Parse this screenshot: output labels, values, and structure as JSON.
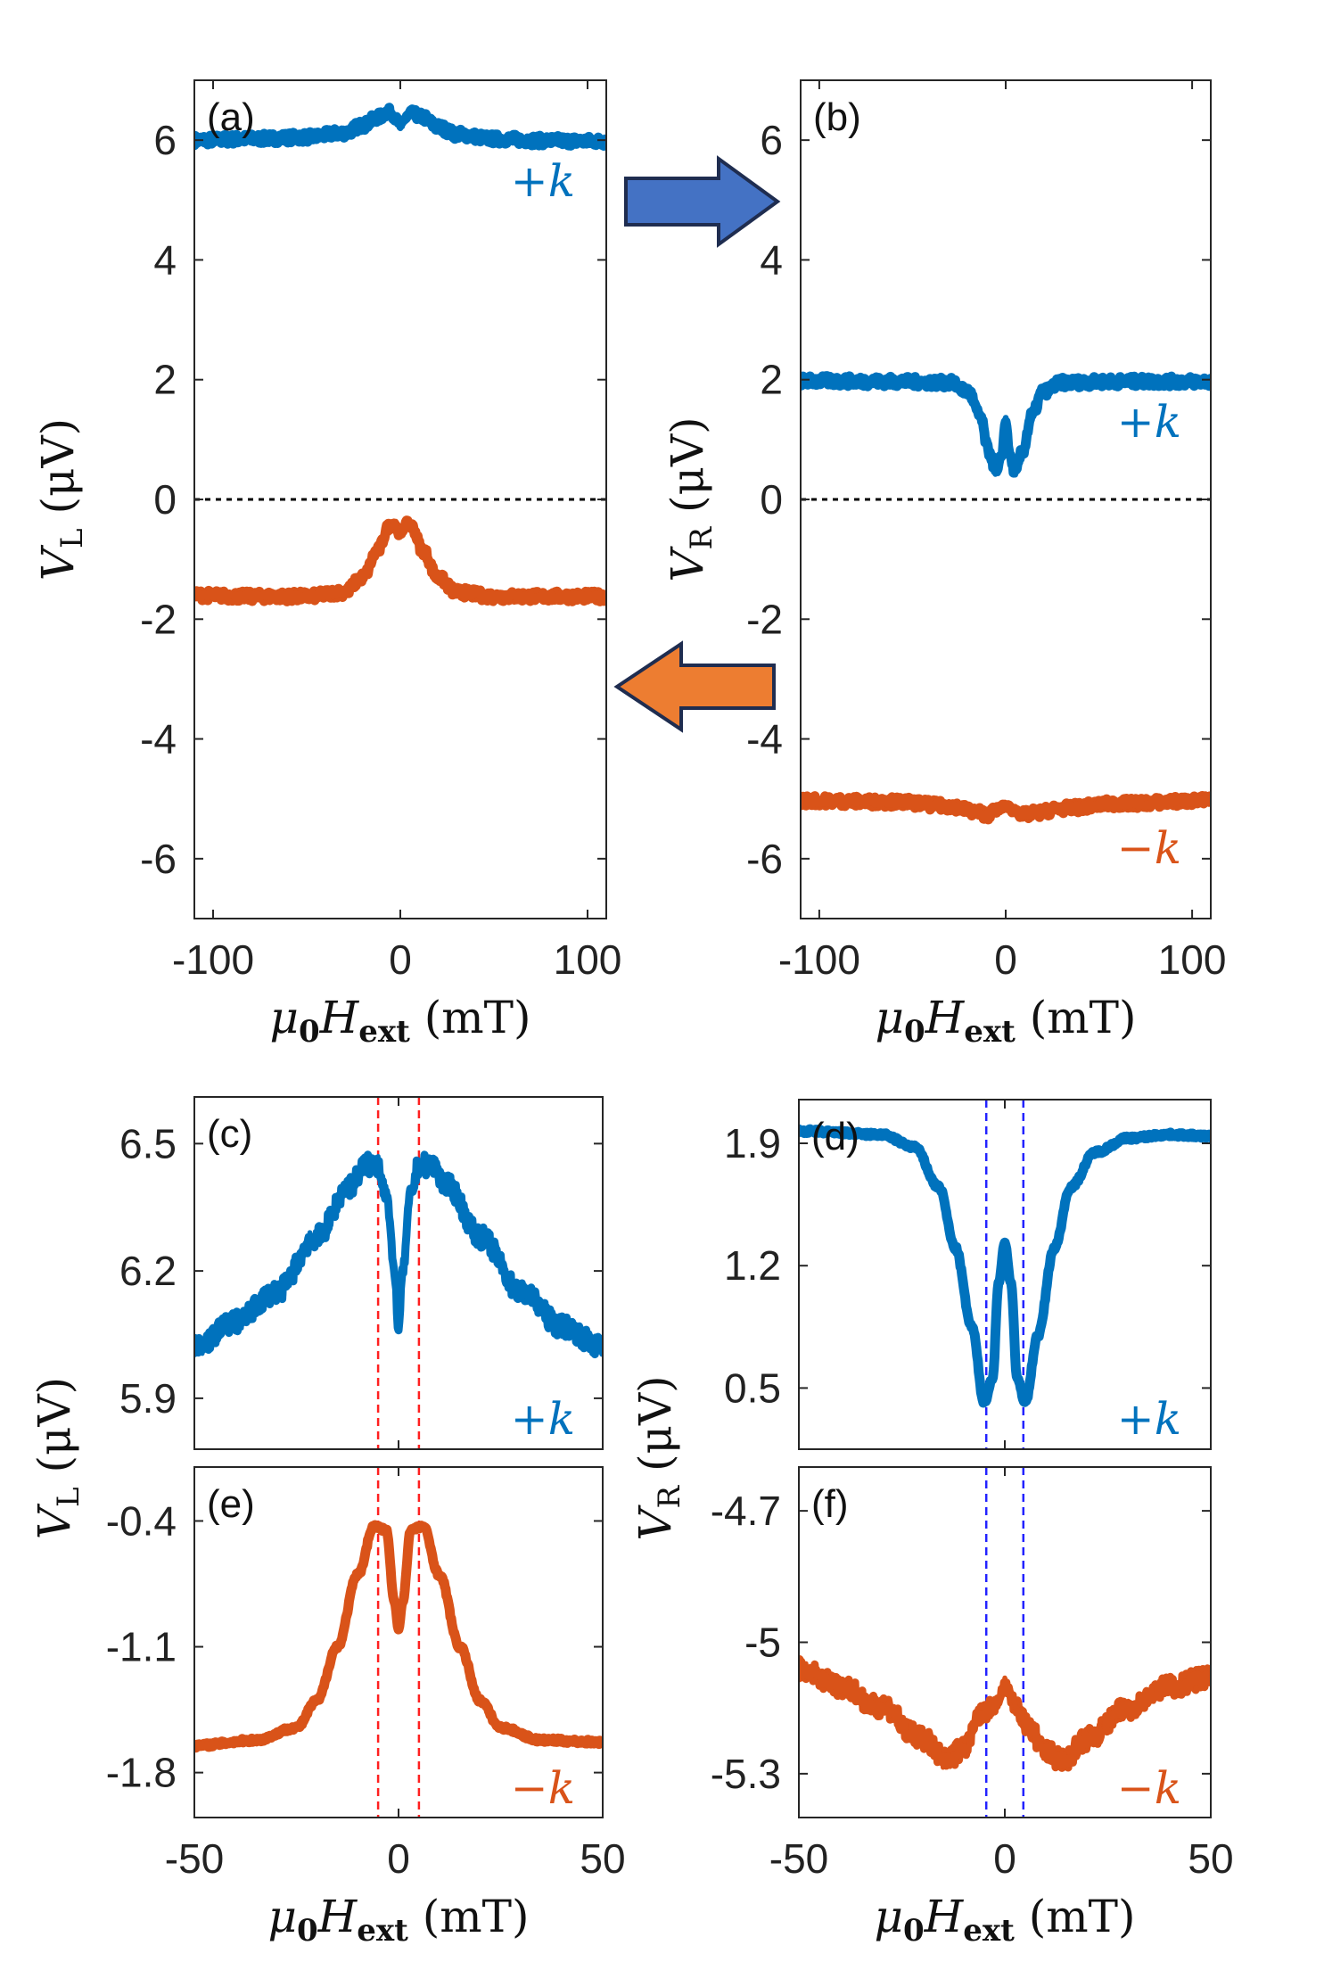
{
  "colors": {
    "blue": "#0072BD",
    "orange": "#D95319",
    "arrow_blue": "#4472C4",
    "arrow_orange": "#ED7D31",
    "arrow_edge": "#1F2D50",
    "red_dash": "#FF2020",
    "blue_dash": "#2222FF"
  },
  "chart_data": [
    {
      "id": "a",
      "type": "line",
      "panel_label": "(a)",
      "ylabel": {
        "sym": "V",
        "sub": "L",
        "unit": " (μV)"
      },
      "xlabel": {
        "sym": "μ",
        "sub0": "0",
        "sym2": "H",
        "sub": "ext",
        "unit": " (mT)"
      },
      "xlim": [
        -110,
        110
      ],
      "ylim": [
        -7,
        7
      ],
      "xticks": [
        -100,
        0,
        100
      ],
      "xtick_labels": [
        "-100",
        "0",
        "100"
      ],
      "yticks": [
        6,
        4,
        2,
        0,
        -2,
        -4,
        -6
      ],
      "ytick_labels": [
        "6",
        "4",
        "2",
        "0",
        "-2",
        "-4",
        "-6"
      ],
      "zero_line": true,
      "series": [
        {
          "label": "+k",
          "color": "blue",
          "x": [
            -110,
            -80,
            -50,
            -30,
            -20,
            -12,
            -6,
            -2,
            0,
            2,
            6,
            12,
            20,
            30,
            50,
            80,
            110
          ],
          "y": [
            6.0,
            6.02,
            6.05,
            6.12,
            6.25,
            6.38,
            6.48,
            6.35,
            6.25,
            6.35,
            6.45,
            6.38,
            6.22,
            6.1,
            6.02,
            5.99,
            5.98
          ]
        },
        {
          "label": "−k",
          "color": "orange",
          "x": [
            -110,
            -80,
            -50,
            -30,
            -20,
            -12,
            -6,
            -3,
            0,
            3,
            6,
            12,
            20,
            30,
            50,
            80,
            110
          ],
          "y": [
            -1.6,
            -1.62,
            -1.62,
            -1.55,
            -1.3,
            -0.85,
            -0.45,
            -0.4,
            -0.6,
            -0.4,
            -0.45,
            -0.85,
            -1.3,
            -1.55,
            -1.62,
            -1.62,
            -1.62
          ]
        }
      ]
    },
    {
      "id": "b",
      "type": "line",
      "panel_label": "(b)",
      "ylabel": {
        "sym": "V",
        "sub": "R",
        "unit": " (μV)"
      },
      "xlabel": {
        "sym": "μ",
        "sub0": "0",
        "sym2": "H",
        "sub": "ext",
        "unit": " (mT)"
      },
      "xlim": [
        -110,
        110
      ],
      "ylim": [
        -7,
        7
      ],
      "xticks": [
        -100,
        0,
        100
      ],
      "xtick_labels": [
        "-100",
        "0",
        "100"
      ],
      "yticks": [
        6,
        4,
        2,
        0,
        -2,
        -4,
        -6
      ],
      "ytick_labels": [
        "6",
        "4",
        "2",
        "0",
        "-2",
        "-4",
        "-6"
      ],
      "zero_line": true,
      "series": [
        {
          "label": "+k",
          "color": "blue",
          "x": [
            -110,
            -60,
            -30,
            -20,
            -14,
            -9,
            -5,
            -2,
            0,
            2,
            5,
            9,
            14,
            20,
            30,
            60,
            110
          ],
          "y": [
            1.98,
            1.97,
            1.95,
            1.8,
            1.4,
            0.8,
            0.45,
            0.75,
            1.3,
            0.75,
            0.45,
            0.8,
            1.4,
            1.8,
            1.95,
            1.97,
            1.97
          ]
        },
        {
          "label": "−k",
          "color": "orange",
          "x": [
            -110,
            -60,
            -30,
            -15,
            -10,
            -5,
            0,
            5,
            10,
            15,
            30,
            60,
            110
          ],
          "y": [
            -5.03,
            -5.05,
            -5.12,
            -5.22,
            -5.27,
            -5.18,
            -5.12,
            -5.2,
            -5.27,
            -5.24,
            -5.16,
            -5.08,
            -5.03
          ]
        }
      ]
    },
    {
      "id": "c",
      "type": "line",
      "panel_label": "(c)",
      "xlim": [
        -50,
        50
      ],
      "ylim": [
        5.78,
        6.61
      ],
      "xticks": [
        -50,
        0,
        50
      ],
      "xtick_labels": [],
      "yticks": [
        6.5,
        6.2,
        5.9
      ],
      "ytick_labels": [
        "6.5",
        "6.2",
        "5.9"
      ],
      "vlines": [
        -5,
        5
      ],
      "vline_color": "red_dash",
      "series": [
        {
          "label": "+k",
          "color": "blue",
          "x": [
            -50,
            -40,
            -30,
            -20,
            -12,
            -8,
            -5,
            -3,
            -1,
            0,
            1,
            3,
            5,
            8,
            12,
            20,
            30,
            40,
            50
          ],
          "y": [
            6.02,
            6.08,
            6.15,
            6.28,
            6.4,
            6.45,
            6.45,
            6.38,
            6.2,
            6.06,
            6.2,
            6.38,
            6.45,
            6.45,
            6.4,
            6.28,
            6.15,
            6.07,
            6.02
          ]
        }
      ]
    },
    {
      "id": "d",
      "type": "line",
      "panel_label": "(d)",
      "xlim": [
        -50,
        50
      ],
      "ylim": [
        0.15,
        2.15
      ],
      "xticks": [
        -50,
        0,
        50
      ],
      "xtick_labels": [],
      "yticks": [
        1.9,
        1.2,
        0.5
      ],
      "ytick_labels": [
        "1.9",
        "1.2",
        "0.5"
      ],
      "vlines": [
        -4.5,
        4.5
      ],
      "vline_color": "blue_dash",
      "series": [
        {
          "label": "+k",
          "color": "blue",
          "x": [
            -50,
            -30,
            -22,
            -16,
            -12,
            -8,
            -5,
            -3,
            -1.5,
            0,
            1.5,
            3,
            5,
            8,
            12,
            16,
            22,
            30,
            40,
            50
          ],
          "y": [
            1.97,
            1.95,
            1.88,
            1.65,
            1.3,
            0.85,
            0.42,
            0.55,
            1.1,
            1.33,
            1.1,
            0.55,
            0.42,
            0.8,
            1.3,
            1.65,
            1.85,
            1.93,
            1.95,
            1.94
          ]
        }
      ]
    },
    {
      "id": "e",
      "type": "line",
      "panel_label": "(e)",
      "ylabel": {
        "sym": "V",
        "sub": "L",
        "unit": " (μV)"
      },
      "xlabel": {
        "sym": "μ",
        "sub0": "0",
        "sym2": "H",
        "sub": "ext",
        "unit": " (mT)"
      },
      "xlim": [
        -50,
        50
      ],
      "ylim": [
        -2.05,
        -0.1
      ],
      "xticks": [
        -50,
        0,
        50
      ],
      "xtick_labels": [
        "-50",
        "0",
        "50"
      ],
      "yticks": [
        -0.4,
        -1.1,
        -1.8
      ],
      "ytick_labels": [
        "-0.4",
        "-1.1",
        "-1.8"
      ],
      "vlines": [
        -5,
        5
      ],
      "vline_color": "red_dash",
      "series": [
        {
          "label": "−k",
          "color": "orange",
          "x": [
            -50,
            -35,
            -25,
            -20,
            -15,
            -10,
            -6,
            -3,
            -1,
            0,
            1,
            3,
            6,
            10,
            15,
            20,
            25,
            35,
            50
          ],
          "y": [
            -1.65,
            -1.62,
            -1.55,
            -1.4,
            -1.1,
            -0.7,
            -0.43,
            -0.45,
            -0.85,
            -1.0,
            -0.85,
            -0.45,
            -0.43,
            -0.7,
            -1.1,
            -1.4,
            -1.55,
            -1.62,
            -1.63
          ]
        }
      ]
    },
    {
      "id": "f",
      "type": "line",
      "panel_label": "(f)",
      "ylabel": {
        "sym": "V",
        "sub": "R",
        "unit": " (μV)"
      },
      "xlabel": {
        "sym": "μ",
        "sub0": "0",
        "sym2": "H",
        "sub": "ext",
        "unit": " (mT)"
      },
      "xlim": [
        -50,
        50
      ],
      "ylim": [
        -5.4,
        -4.6
      ],
      "xticks": [
        -50,
        0,
        50
      ],
      "xtick_labels": [
        "-50",
        "0",
        "50"
      ],
      "yticks": [
        -4.7,
        -5,
        -5.3
      ],
      "ytick_labels": [
        "-4.7",
        "-5",
        "-5.3"
      ],
      "vlines": [
        -4.5,
        4.5
      ],
      "vline_color": "blue_dash",
      "series": [
        {
          "label": "−k",
          "color": "orange",
          "x": [
            -50,
            -40,
            -30,
            -20,
            -14,
            -10,
            -6,
            -3,
            0,
            3,
            6,
            10,
            14,
            20,
            30,
            40,
            50
          ],
          "y": [
            -5.06,
            -5.1,
            -5.15,
            -5.22,
            -5.27,
            -5.24,
            -5.17,
            -5.15,
            -5.1,
            -5.15,
            -5.2,
            -5.25,
            -5.27,
            -5.22,
            -5.15,
            -5.1,
            -5.08
          ]
        }
      ]
    }
  ],
  "series_labels": {
    "plus": "+",
    "minus": "−",
    "k": "k"
  }
}
